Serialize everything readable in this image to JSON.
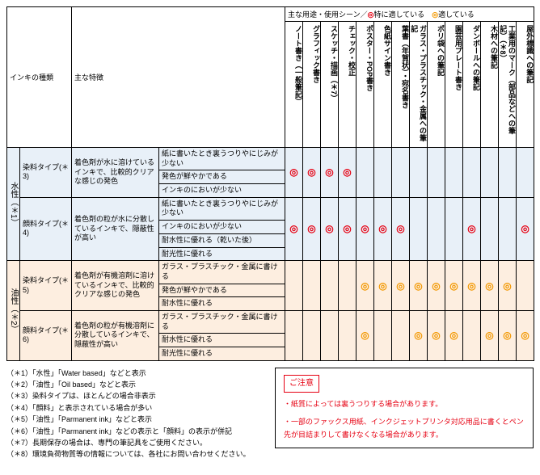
{
  "legend": {
    "header": "主な用途・使用シーン／",
    "mark1_sym": "◎",
    "mark1_label": "特に適している",
    "mark2_sym": "◎",
    "mark2_label": "適している"
  },
  "headers": {
    "ink_type": "インキの種類",
    "main_char": "主な特徴"
  },
  "uses": [
    "ノート書き（一般筆記）",
    "グラフィック書き",
    "スケッチ・描画（＊7）",
    "チェック・校正",
    "ポスター・POP書き",
    "色紙サイン書き",
    "葉書（年賀状）・宛名書き",
    "ガラス・プラスチック・金属への筆記",
    "ポリ袋への筆記",
    "園芸用プレート書き",
    "ダンボールへの筆記",
    "木材への筆記",
    "工業用のマーク（部品などへの筆記）（＊8）",
    "屋外標識への筆記"
  ],
  "groups": [
    {
      "label": "水性（＊1）",
      "bg": "bg-blue",
      "types": [
        {
          "name": "染料タイプ(＊3)",
          "char": "着色剤が水に溶けているインキで、比較的クリアな感じの発色",
          "features": [
            {
              "text": "紙に書いたとき裏うつりやにじみが少ない",
              "marks": [
                "r",
                "r",
                "r",
                "r",
                "",
                "",
                "",
                "",
                "",
                "",
                "",
                "",
                "",
                ""
              ]
            },
            {
              "text": "発色が鮮やかである",
              "marks": []
            },
            {
              "text": "インキのにおいが少ない",
              "marks": []
            }
          ]
        },
        {
          "name": "顔料タイプ(＊4)",
          "char": "着色剤の粒が水に分散しているインキで、隠蔽性が高い",
          "features": [
            {
              "text": "紙に書いたとき裏うつりやにじみが少ない",
              "marks": [
                "r",
                "r",
                "r",
                "r",
                "r",
                "r",
                "r",
                "",
                "",
                "",
                "r",
                "",
                "",
                "r"
              ]
            },
            {
              "text": "インキのにおいが少ない",
              "marks": []
            },
            {
              "text": "耐水性に優れる（乾いた後）",
              "marks": []
            },
            {
              "text": "耐光性に優れる",
              "marks": []
            }
          ]
        }
      ]
    },
    {
      "label": "油性（＊2）",
      "bg": "bg-peach",
      "types": [
        {
          "name": "染料タイプ(＊5)",
          "char": "着色剤が有機溶剤に溶けているインキで、比較的クリアな感じの発色",
          "features": [
            {
              "text": "ガラス・プラスチック・金属に書ける",
              "marks": [
                "",
                "",
                "",
                "",
                "o",
                "o",
                "o",
                "o",
                "o",
                "o",
                "o",
                "o",
                "o",
                ""
              ]
            },
            {
              "text": "発色が鮮やかである",
              "marks": []
            },
            {
              "text": "耐水性に優れる",
              "marks": []
            }
          ]
        },
        {
          "name": "顔料タイプ(＊6)",
          "char": "着色剤の粒が有機溶剤に分散しているインキで、隠蔽性が高い",
          "features": [
            {
              "text": "ガラス・プラスチック・金属に書ける",
              "marks": [
                "",
                "",
                "",
                "",
                "o",
                "",
                "",
                "o",
                "o",
                "o",
                "",
                "o",
                "o",
                "o"
              ]
            },
            {
              "text": "耐水性に優れる",
              "marks": []
            },
            {
              "text": "耐光性に優れる",
              "marks": []
            }
          ]
        }
      ]
    }
  ],
  "footnotes": [
    "（＊1）「水性」「Water based」などと表示",
    "（＊2）「油性」「Oil based」などと表示",
    "（＊3）染料タイプは、ほとんどの場合非表示",
    "（＊4）「顔料」と表示されている場合が多い",
    "（＊5）「油性」「Parmanent ink」などと表示",
    "（＊6）「油性」「Parmanent ink」などの表示と「顔料」の表示が併記",
    "（＊7）長期保存の場合は、専門の筆記具をご使用ください。",
    "（＊8）環境負荷物質等の情報については、各社にお問い合わせください。"
  ],
  "caution": {
    "title": "ご注意",
    "lines": [
      "・紙質によっては裏うつりする場合があります。",
      "・一部のファックス用紙、インクジェットプリンタ対応用品に書くとペン先が目詰まりして書けなくなる場合があります。"
    ]
  },
  "colors": {
    "red": "#e60012",
    "orange": "#f39800",
    "blue_bg": "#e8f0f8",
    "peach_bg": "#fdeee0"
  }
}
